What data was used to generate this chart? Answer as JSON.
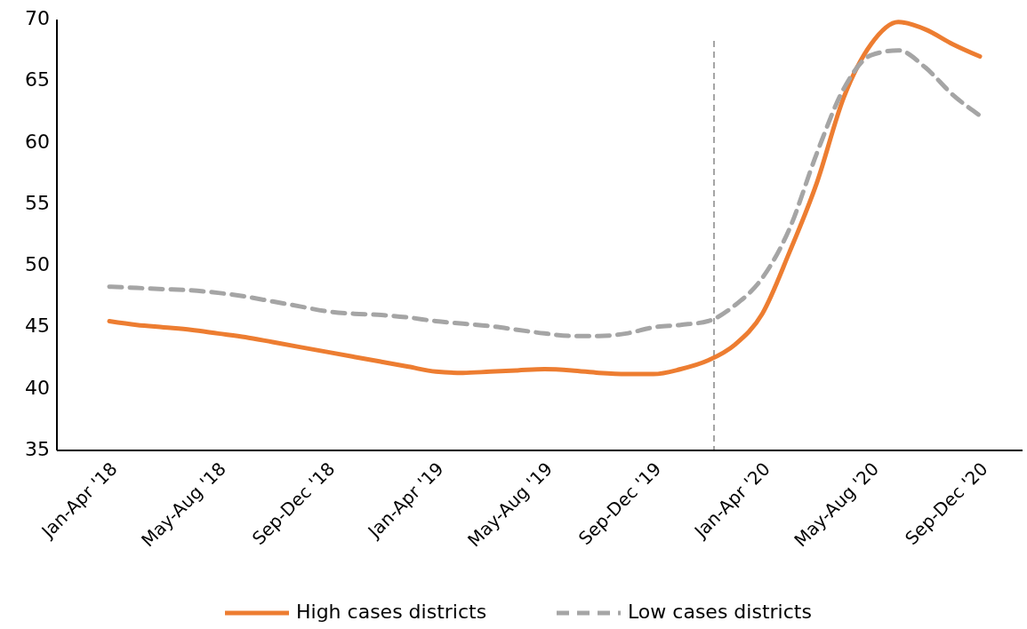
{
  "chart_data": {
    "type": "line",
    "categories": [
      "Jan-Apr '18",
      null,
      null,
      null,
      "May-Aug '18",
      null,
      null,
      null,
      "Sep-Dec '18",
      null,
      null,
      null,
      "Jan-Apr '19",
      null,
      null,
      null,
      "May-Aug '19",
      null,
      null,
      null,
      "Sep-Dec '19",
      null,
      null,
      null,
      "Jan-Apr '20",
      null,
      null,
      null,
      "May-Aug '20",
      null,
      null,
      null,
      "Sep-Dec '20"
    ],
    "ylim": [
      35,
      70
    ],
    "yticks": [
      35,
      40,
      45,
      50,
      55,
      60,
      65,
      70
    ],
    "series": [
      {
        "name": "High cases districts",
        "color": "#ed7d31",
        "line_style": "solid",
        "values": [
          45.5,
          45.2,
          45.0,
          44.8,
          44.5,
          44.2,
          43.8,
          43.4,
          43.0,
          42.6,
          42.2,
          41.8,
          41.4,
          41.3,
          41.4,
          41.5,
          41.6,
          41.5,
          41.3,
          41.2,
          41.2,
          41.6,
          42.3,
          43.6,
          46.1,
          51.1,
          56.7,
          63.7,
          68.0,
          69.8,
          69.2,
          68.0,
          67.0
        ]
      },
      {
        "name": "Low cases districts",
        "color": "#a5a5a5",
        "line_style": "dashed",
        "values": [
          48.3,
          48.2,
          48.1,
          48.0,
          47.8,
          47.5,
          47.1,
          46.7,
          46.3,
          46.1,
          46.0,
          45.8,
          45.5,
          45.3,
          45.1,
          44.8,
          44.5,
          44.3,
          44.3,
          44.5,
          45.0,
          45.2,
          45.5,
          46.8,
          49.0,
          53.0,
          59.1,
          64.4,
          67.1,
          67.5,
          66.1,
          63.9,
          62.2
        ]
      }
    ],
    "legend": "bottom",
    "marker": "none"
  }
}
